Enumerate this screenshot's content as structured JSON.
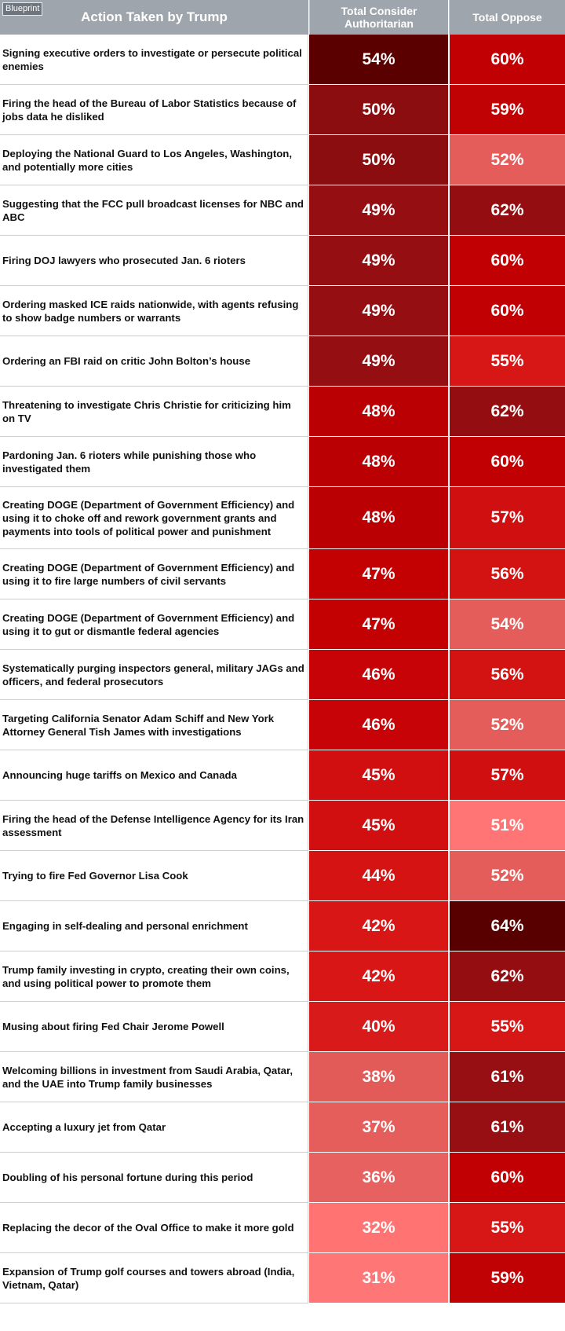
{
  "logo": "Blueprint",
  "chart_data": {
    "type": "table",
    "columns": [
      "Action Taken by Trump",
      "Total Consider Authoritarian",
      "Total Oppose"
    ],
    "rows": [
      {
        "action": "Signing executive orders to investigate or persecute political enemies",
        "authoritarian": "54%",
        "oppose": "60%"
      },
      {
        "action": "Firing the head of the Bureau of Labor Statistics because of jobs data he disliked",
        "authoritarian": "50%",
        "oppose": "59%"
      },
      {
        "action": "Deploying the National Guard to Los Angeles, Washington, and potentially more cities",
        "authoritarian": "50%",
        "oppose": "52%"
      },
      {
        "action": "Suggesting that the FCC pull broadcast licenses for NBC and ABC",
        "authoritarian": "49%",
        "oppose": "62%"
      },
      {
        "action": "Firing DOJ lawyers who prosecuted Jan. 6 rioters",
        "authoritarian": "49%",
        "oppose": "60%"
      },
      {
        "action": "Ordering masked ICE raids nationwide, with agents refusing to show badge numbers or warrants",
        "authoritarian": "49%",
        "oppose": "60%"
      },
      {
        "action": "Ordering an FBI raid on critic John Bolton’s house",
        "authoritarian": "49%",
        "oppose": "55%"
      },
      {
        "action": "Threatening to investigate Chris Christie for criticizing him on TV",
        "authoritarian": "48%",
        "oppose": "62%"
      },
      {
        "action": "Pardoning Jan. 6 rioters while punishing those who investigated them",
        "authoritarian": "48%",
        "oppose": "60%"
      },
      {
        "action": "Creating DOGE (Department of Government Efficiency) and using it to choke off and rework government grants and payments into tools of political power and punishment",
        "authoritarian": "48%",
        "oppose": "57%"
      },
      {
        "action": "Creating DOGE (Department of Government Efficiency) and using it to fire large numbers of civil servants",
        "authoritarian": "47%",
        "oppose": "56%"
      },
      {
        "action": "Creating DOGE (Department of Government Efficiency) and using it to gut or dismantle federal agencies",
        "authoritarian": "47%",
        "oppose": "54%"
      },
      {
        "action": "Systematically purging inspectors general, military JAGs and officers, and federal prosecutors",
        "authoritarian": "46%",
        "oppose": "56%"
      },
      {
        "action": "Targeting California Senator Adam Schiff and New York Attorney General Tish James with investigations",
        "authoritarian": "46%",
        "oppose": "52%"
      },
      {
        "action": "Announcing huge tariffs on Mexico and Canada",
        "authoritarian": "45%",
        "oppose": "57%"
      },
      {
        "action": "Firing the head of the Defense Intelligence Agency for its Iran assessment",
        "authoritarian": "45%",
        "oppose": "51%"
      },
      {
        "action": "Trying to fire Fed Governor Lisa Cook",
        "authoritarian": "44%",
        "oppose": "52%"
      },
      {
        "action": "Engaging in self-dealing and personal enrichment",
        "authoritarian": "42%",
        "oppose": "64%"
      },
      {
        "action": "Trump family investing in crypto, creating their own coins, and using political power to promote them",
        "authoritarian": "42%",
        "oppose": "62%"
      },
      {
        "action": "Musing about firing Fed Chair Jerome Powell",
        "authoritarian": "40%",
        "oppose": "55%"
      },
      {
        "action": "Welcoming billions in investment from Saudi Arabia, Qatar, and the UAE into Trump family businesses",
        "authoritarian": "38%",
        "oppose": "61%"
      },
      {
        "action": "Accepting a luxury jet from Qatar",
        "authoritarian": "37%",
        "oppose": "61%"
      },
      {
        "action": "Doubling of his personal fortune during this period",
        "authoritarian": "36%",
        "oppose": "60%"
      },
      {
        "action": "Replacing the decor of the Oval Office to make it more gold",
        "authoritarian": "32%",
        "oppose": "55%"
      },
      {
        "action": "Expansion of Trump golf courses and towers abroad (India, Vietnam, Qatar)",
        "authoritarian": "31%",
        "oppose": "59%"
      }
    ]
  },
  "colors": {
    "header_bg": "#9fa5ad",
    "authoritarian": {
      "54%": "#5a0000",
      "50%": "#8c0d10",
      "49%": "#950e11",
      "48%": "#bb0003",
      "47%": "#c30103",
      "46%": "#c80307",
      "45%": "#d10e10",
      "44%": "#d51313",
      "42%": "#d81616",
      "40%": "#d91a1a",
      "38%": "#e25b59",
      "37%": "#e55e5c",
      "36%": "#e66160",
      "32%": "#ff7373",
      "31%": "#ff7676"
    },
    "oppose": {
      "64%": "#580000",
      "62%": "#940d10",
      "61%": "#970f12",
      "60%": "#c00003",
      "59%": "#c10204",
      "57%": "#cf0f10",
      "56%": "#d31212",
      "55%": "#d71616",
      "54%": "#e45d5b",
      "52%": "#e55d5b",
      "51%": "#ff7575"
    }
  }
}
